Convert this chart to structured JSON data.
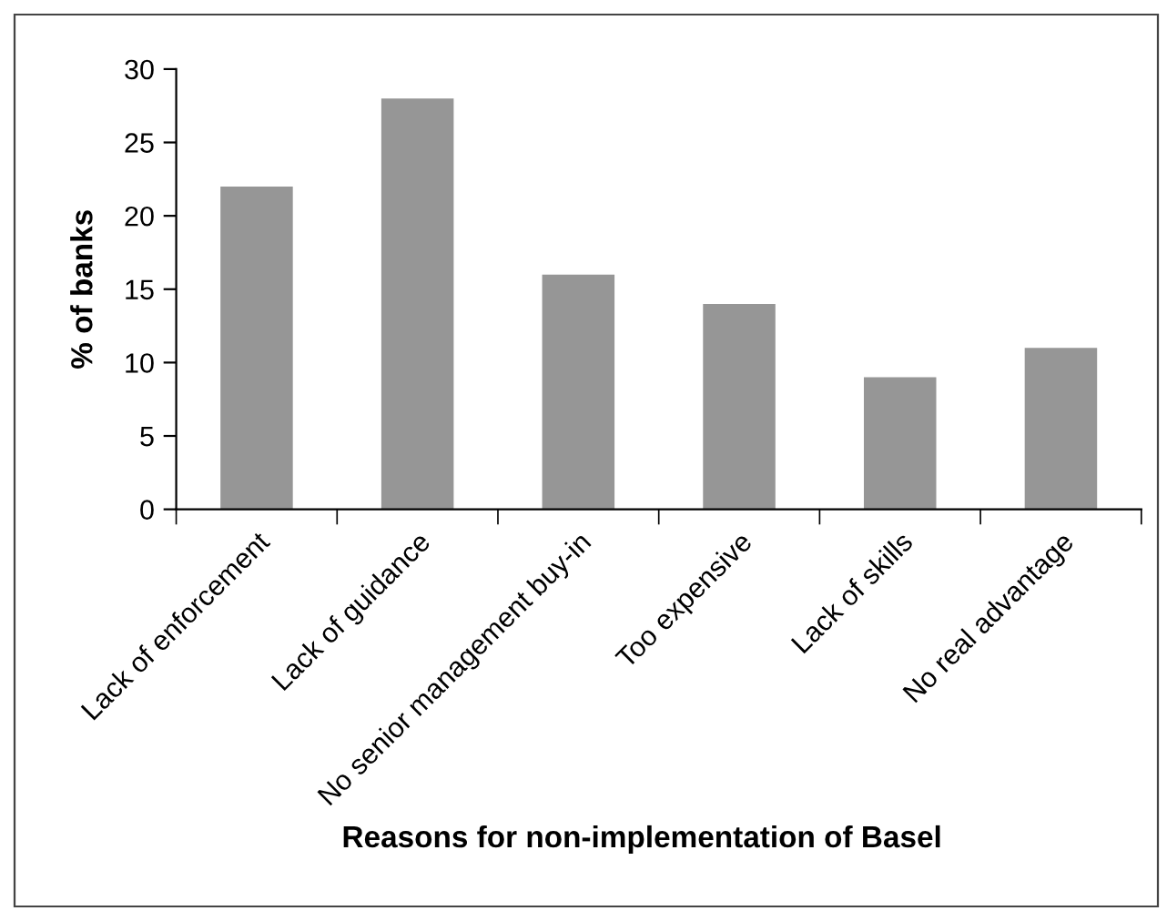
{
  "chart_data": {
    "type": "bar",
    "xlabel": "Reasons for non-implementation of Basel",
    "ylabel": "% of banks",
    "categories": [
      "Lack of enforcement",
      "Lack of guidance",
      "No senior management buy-in",
      "Too expensive",
      "Lack of skills",
      "No real advantage"
    ],
    "values": [
      22,
      28,
      16,
      14,
      9,
      11
    ],
    "color": "#969696",
    "ylim": [
      0,
      30
    ],
    "yticks": [
      0,
      5,
      10,
      15,
      20,
      25,
      30
    ],
    "grid": false,
    "legend": false
  }
}
